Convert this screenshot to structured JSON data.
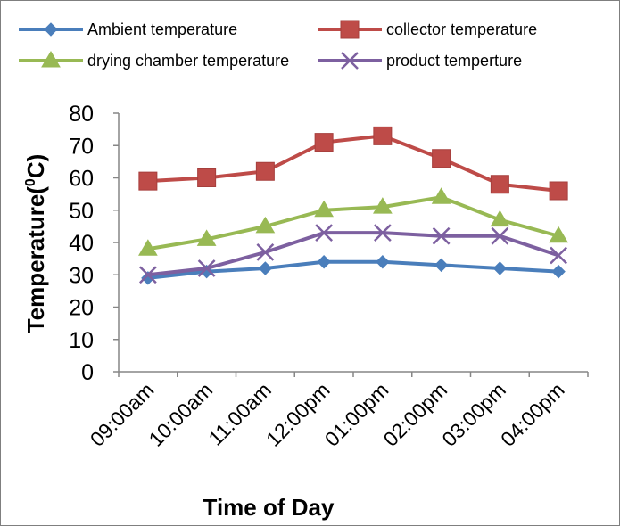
{
  "chart_data": {
    "type": "line",
    "categories": [
      "09:00am",
      "10:00am",
      "11:00am",
      "12:00pm",
      "01:00pm",
      "02:00pm",
      "03:00pm",
      "04:00pm"
    ],
    "series": [
      {
        "name": "Ambient temperature",
        "values": [
          29,
          31,
          32,
          34,
          34,
          33,
          32,
          31
        ],
        "color": "#4a7ebb",
        "marker": "diamond"
      },
      {
        "name": "collector temperature",
        "values": [
          59,
          60,
          62,
          71,
          73,
          66,
          58,
          56
        ],
        "color": "#be4b48",
        "marker": "square"
      },
      {
        "name": "drying chamber temperature",
        "values": [
          38,
          41,
          45,
          50,
          51,
          54,
          47,
          42
        ],
        "color": "#98b954",
        "marker": "triangle"
      },
      {
        "name": "product temperture",
        "values": [
          30,
          32,
          37,
          43,
          43,
          42,
          42,
          36
        ],
        "color": "#7d60a0",
        "marker": "x"
      }
    ],
    "xlabel": "Time of Day",
    "ylabel_main": "Temperature(",
    "ylabel_sup": "0",
    "ylabel_end": "C)",
    "ylim": [
      0,
      80
    ],
    "yticks": [
      0,
      10,
      20,
      30,
      40,
      50,
      60,
      70,
      80
    ],
    "grid": false,
    "legend_position": "top"
  }
}
